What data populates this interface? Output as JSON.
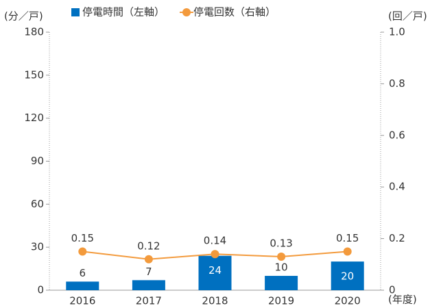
{
  "chart_data": {
    "type": "bar_line",
    "y_label": "(分／戸)",
    "y2_label": "(回／戸)",
    "x_label": "(年度)",
    "categories": [
      "2016",
      "2017",
      "2018",
      "2019",
      "2020"
    ],
    "series": [
      {
        "name": "停電時間（左軸）",
        "type": "bar",
        "color": "#0070c0",
        "values": [
          6,
          7,
          24,
          10,
          20
        ]
      },
      {
        "name": "停電回数（右軸）",
        "type": "line",
        "axis": "y2",
        "color": "#f39a3c",
        "values": [
          0.15,
          0.12,
          0.14,
          0.13,
          0.15
        ]
      }
    ],
    "ylim": [
      0,
      180
    ],
    "yticks": [
      0,
      30,
      60,
      90,
      120,
      150,
      180
    ],
    "y2lim": [
      0,
      1
    ],
    "y2ticks": [
      0,
      0.2,
      0.4,
      0.6,
      0.8,
      {
        "value": 1,
        "label": "1.0"
      }
    ]
  }
}
